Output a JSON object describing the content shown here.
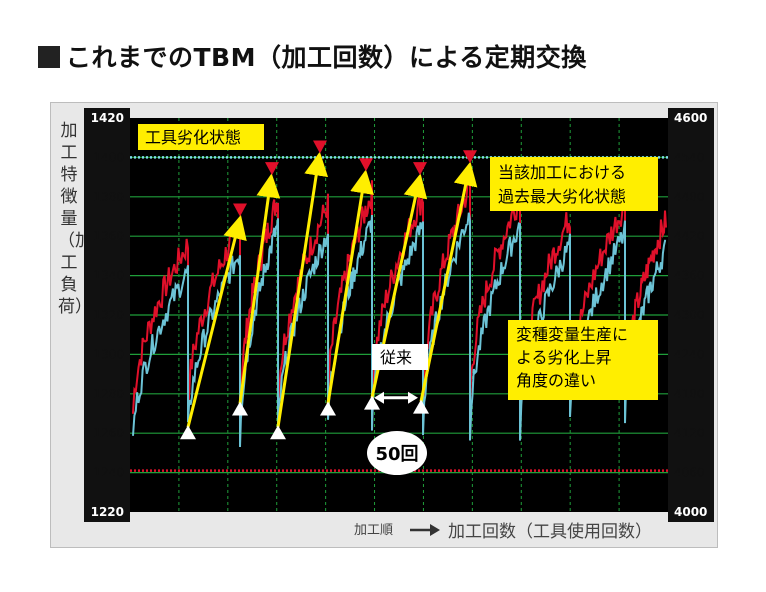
{
  "title": "これまでのTBM（加工回数）による定期交換",
  "chart_data": {
    "type": "line",
    "ylabel": "加工特徴量（加工負荷）",
    "xlabel": "加工回数（工具使用回数）",
    "x_order_label": "加工順",
    "y_left_lim": [
      1220,
      1420
    ],
    "y_left_ticks": [
      1220,
      1240,
      1260,
      1280,
      1300,
      1320,
      1340,
      1360,
      1380,
      1400,
      1420
    ],
    "y_right_lim": [
      4000,
      4600
    ],
    "y_right_ticks": [
      4000,
      4060,
      4120,
      4180,
      4240,
      4300,
      4360,
      4420,
      4480,
      4540,
      4600
    ],
    "grid": true,
    "threshold_upper": 1400,
    "threshold_lower": 1241,
    "series": [],
    "cycles_start_y": [
      1260,
      1272,
      1260,
      1272,
      1275,
      1273
    ],
    "cycles_end_y": [
      1370,
      1391,
      1402,
      1393,
      1391,
      1397
    ],
    "annotations": {
      "tool_state": "工具劣化状態",
      "past_max": "当該加工における\n過去最大劣化状態",
      "conventional": "従来",
      "interval": "50回",
      "variable_production": "変種変量生産に\nよる劣化上昇\n角度の違い"
    },
    "colors": {
      "red": "#e0102a",
      "cyan": "#6cc3d6",
      "yellow": "#ffee00",
      "grid": "#1f9e3a",
      "threshold": "#7fd8e8",
      "lower": "#e0102a"
    }
  }
}
